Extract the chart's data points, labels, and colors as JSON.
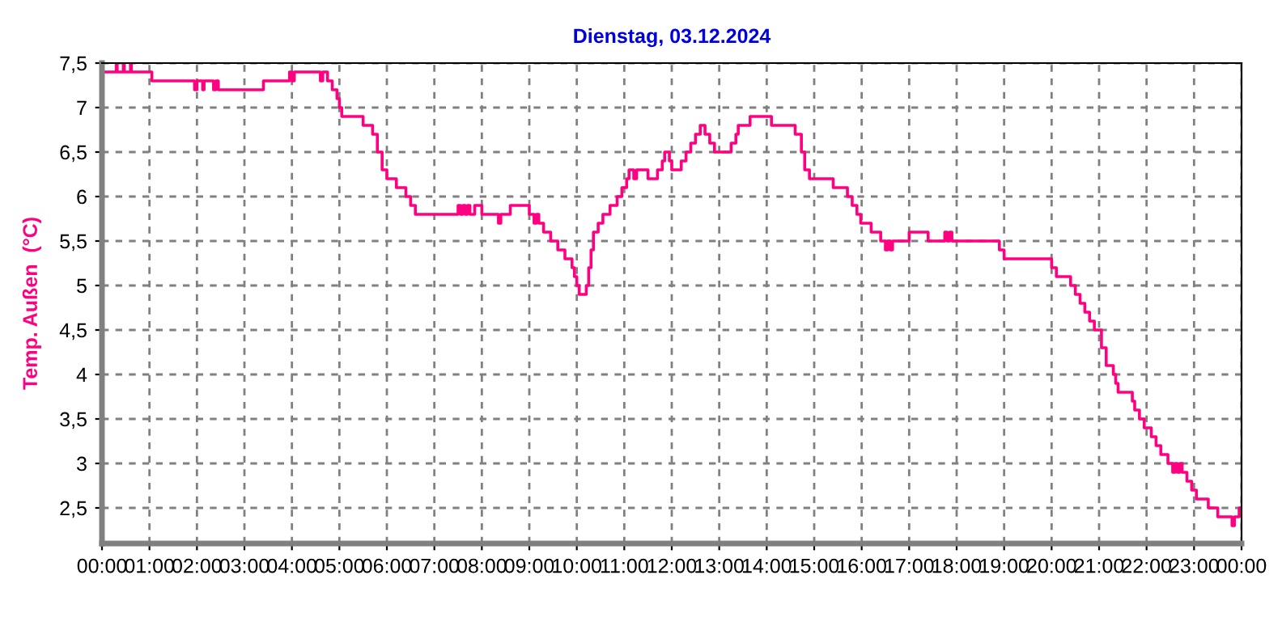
{
  "chart_data": {
    "type": "step",
    "title": "Dienstag, 03.12.2024",
    "ylabel": "Temp. Außen  (°C)",
    "xlim": [
      0,
      24
    ],
    "ylim": [
      2.1,
      7.5
    ],
    "xticks": [
      {
        "value": 0,
        "label": "00:00"
      },
      {
        "value": 1,
        "label": "01:00"
      },
      {
        "value": 2,
        "label": "02:00"
      },
      {
        "value": 3,
        "label": "03:00"
      },
      {
        "value": 4,
        "label": "04:00"
      },
      {
        "value": 5,
        "label": "05:00"
      },
      {
        "value": 6,
        "label": "06:00"
      },
      {
        "value": 7,
        "label": "07:00"
      },
      {
        "value": 8,
        "label": "08:00"
      },
      {
        "value": 9,
        "label": "09:00"
      },
      {
        "value": 10,
        "label": "10:00"
      },
      {
        "value": 11,
        "label": "11:00"
      },
      {
        "value": 12,
        "label": "12:00"
      },
      {
        "value": 13,
        "label": "13:00"
      },
      {
        "value": 14,
        "label": "14:00"
      },
      {
        "value": 15,
        "label": "15:00"
      },
      {
        "value": 16,
        "label": "16:00"
      },
      {
        "value": 17,
        "label": "17:00"
      },
      {
        "value": 18,
        "label": "18:00"
      },
      {
        "value": 19,
        "label": "19:00"
      },
      {
        "value": 20,
        "label": "20:00"
      },
      {
        "value": 21,
        "label": "21:00"
      },
      {
        "value": 22,
        "label": "22:00"
      },
      {
        "value": 23,
        "label": "23:00"
      },
      {
        "value": 24,
        "label": "00:00"
      }
    ],
    "yticks": [
      {
        "value": 2.5,
        "label": "2,5"
      },
      3,
      {
        "value": 3.5,
        "label": "3,5"
      },
      4,
      {
        "value": 4.5,
        "label": "4,5"
      },
      5,
      {
        "value": 5.5,
        "label": "5,5"
      },
      6,
      {
        "value": 6.5,
        "label": "6,5"
      },
      7,
      {
        "value": 7.5,
        "label": "7,5"
      }
    ],
    "grid": true,
    "line_style": "solid",
    "marker": "none",
    "series": [
      {
        "color": "#ff0080",
        "x": [
          0,
          0.3,
          0.32,
          0.45,
          0.47,
          0.6,
          0.62,
          1.05,
          1.95,
          2.0,
          2.12,
          2.15,
          2.35,
          2.4,
          2.45,
          3.4,
          3.95,
          4.0,
          4.05,
          4.6,
          4.65,
          4.75,
          4.85,
          4.95,
          5.0,
          5.05,
          5.5,
          5.7,
          5.8,
          5.9,
          6.0,
          6.2,
          6.4,
          6.5,
          6.6,
          7.5,
          7.55,
          7.6,
          7.65,
          7.7,
          7.75,
          7.85,
          8.0,
          8.35,
          8.4,
          8.6,
          9.0,
          9.1,
          9.15,
          9.2,
          9.3,
          9.45,
          9.6,
          9.75,
          9.9,
          9.95,
          10.0,
          10.05,
          10.2,
          10.25,
          10.3,
          10.35,
          10.45,
          10.55,
          10.7,
          10.85,
          10.95,
          11.05,
          11.1,
          11.2,
          11.26,
          11.5,
          11.7,
          11.8,
          11.85,
          11.95,
          12.0,
          12.2,
          12.3,
          12.4,
          12.5,
          12.6,
          12.7,
          12.8,
          12.9,
          13.25,
          13.35,
          13.4,
          13.65,
          14.1,
          14.6,
          14.73,
          14.8,
          14.9,
          15.4,
          15.7,
          15.8,
          15.9,
          15.98,
          16.2,
          16.4,
          16.5,
          16.55,
          16.6,
          16.65,
          17.0,
          17.4,
          17.75,
          17.8,
          17.85,
          17.9,
          18.9,
          19.0,
          20.0,
          20.1,
          20.4,
          20.5,
          20.6,
          20.7,
          20.8,
          20.9,
          21.05,
          21.15,
          21.3,
          21.35,
          21.4,
          21.7,
          21.75,
          21.85,
          21.95,
          22.1,
          22.2,
          22.3,
          22.45,
          22.55,
          22.6,
          22.65,
          22.7,
          22.75,
          22.85,
          22.95,
          23.05,
          23.3,
          23.5,
          23.8,
          23.85,
          23.95,
          24
        ],
        "values": [
          7.4,
          7.5,
          7.4,
          7.5,
          7.4,
          7.5,
          7.4,
          7.3,
          7.2,
          7.3,
          7.2,
          7.3,
          7.2,
          7.3,
          7.2,
          7.3,
          7.4,
          7.3,
          7.4,
          7.3,
          7.4,
          7.3,
          7.2,
          7.1,
          7.0,
          6.9,
          6.8,
          6.7,
          6.5,
          6.3,
          6.2,
          6.1,
          6.0,
          5.9,
          5.8,
          5.9,
          5.8,
          5.9,
          5.8,
          5.9,
          5.8,
          5.9,
          5.8,
          5.7,
          5.8,
          5.9,
          5.8,
          5.7,
          5.8,
          5.7,
          5.6,
          5.5,
          5.4,
          5.3,
          5.2,
          5.1,
          5.0,
          4.9,
          5.0,
          5.2,
          5.4,
          5.6,
          5.7,
          5.8,
          5.9,
          6.0,
          6.1,
          6.2,
          6.3,
          6.2,
          6.3,
          6.2,
          6.3,
          6.4,
          6.5,
          6.4,
          6.3,
          6.4,
          6.5,
          6.6,
          6.7,
          6.8,
          6.7,
          6.6,
          6.5,
          6.6,
          6.7,
          6.8,
          6.9,
          6.8,
          6.7,
          6.5,
          6.3,
          6.2,
          6.1,
          6.0,
          5.9,
          5.8,
          5.7,
          5.6,
          5.5,
          5.4,
          5.5,
          5.4,
          5.5,
          5.6,
          5.5,
          5.6,
          5.5,
          5.6,
          5.5,
          5.4,
          5.3,
          5.2,
          5.1,
          5.0,
          4.9,
          4.8,
          4.7,
          4.6,
          4.5,
          4.3,
          4.1,
          4.0,
          3.9,
          3.8,
          3.7,
          3.6,
          3.5,
          3.4,
          3.3,
          3.2,
          3.1,
          3.0,
          2.9,
          3.0,
          2.9,
          3.0,
          2.9,
          2.8,
          2.7,
          2.6,
          2.5,
          2.4,
          2.3,
          2.4,
          2.5,
          2.5
        ]
      }
    ]
  }
}
